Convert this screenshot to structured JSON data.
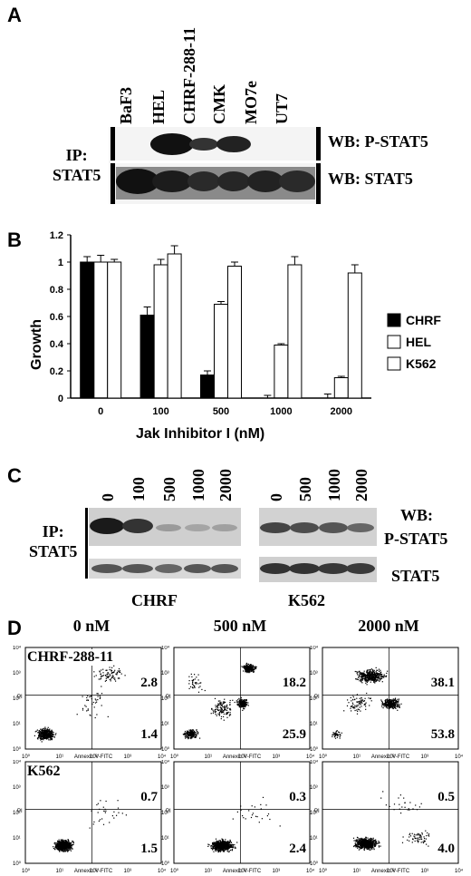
{
  "panel_a": {
    "letter": "A",
    "lanes": [
      "BaF3",
      "HEL",
      "CHRF-288-11",
      "CMK",
      "MO7e",
      "UT7"
    ],
    "ip_line1": "IP:",
    "ip_line2": "STAT5",
    "wb_top": "WB: P-STAT5",
    "wb_bottom": "WB: STAT5"
  },
  "panel_b": {
    "letter": "B"
  },
  "chart_data": {
    "type": "bar",
    "ylabel": "Growth",
    "xlabel": "Jak Inhibitor I (nM)",
    "categories": [
      "0",
      "100",
      "500",
      "1000",
      "2000"
    ],
    "ylim": [
      0,
      1.2
    ],
    "yticks": [
      "0",
      "0.2",
      "0.4",
      "0.6",
      "0.8",
      "1",
      "1.2"
    ],
    "series": [
      {
        "name": "CHRF",
        "values": [
          1.0,
          0.61,
          0.17,
          0.0,
          0.0
        ],
        "errors": [
          0.04,
          0.06,
          0.03,
          0.02,
          0.03
        ],
        "color": "#000000"
      },
      {
        "name": "HEL",
        "values": [
          1.0,
          0.98,
          0.69,
          0.39,
          0.15
        ],
        "errors": [
          0.05,
          0.04,
          0.02,
          0.01,
          0.01
        ],
        "color": "#9a9a9a"
      },
      {
        "name": "K562",
        "values": [
          1.0,
          1.06,
          0.97,
          0.98,
          0.92
        ],
        "errors": [
          0.02,
          0.06,
          0.03,
          0.06,
          0.06
        ],
        "color": "#ffffff"
      }
    ],
    "legend_position": "right"
  },
  "panel_c": {
    "letter": "C",
    "chrf_doses": [
      "0",
      "100",
      "500",
      "1000",
      "2000"
    ],
    "k562_doses": [
      "0",
      "500",
      "1000",
      "2000"
    ],
    "ip_line1": "IP:",
    "ip_line2": "STAT5",
    "wb_label": "WB:",
    "pstat5": "P-STAT5",
    "stat5": "STAT5",
    "chrf": "CHRF",
    "k562": "K562"
  },
  "panel_d": {
    "letter": "D",
    "columns": [
      "0 nM",
      "500 nM",
      "2000 nM"
    ],
    "rows": [
      {
        "label": "CHRF-288-11",
        "upper": [
          "2.8",
          "18.2",
          "38.1"
        ],
        "lower": [
          "1.4",
          "25.9",
          "53.8"
        ]
      },
      {
        "label": "K562",
        "upper": [
          "0.7",
          "0.3",
          "0.5"
        ],
        "lower": [
          "1.5",
          "2.4",
          "4.0"
        ]
      }
    ],
    "x_axis_label": "Annexin V-FITC",
    "y_axis_label": "PI"
  }
}
